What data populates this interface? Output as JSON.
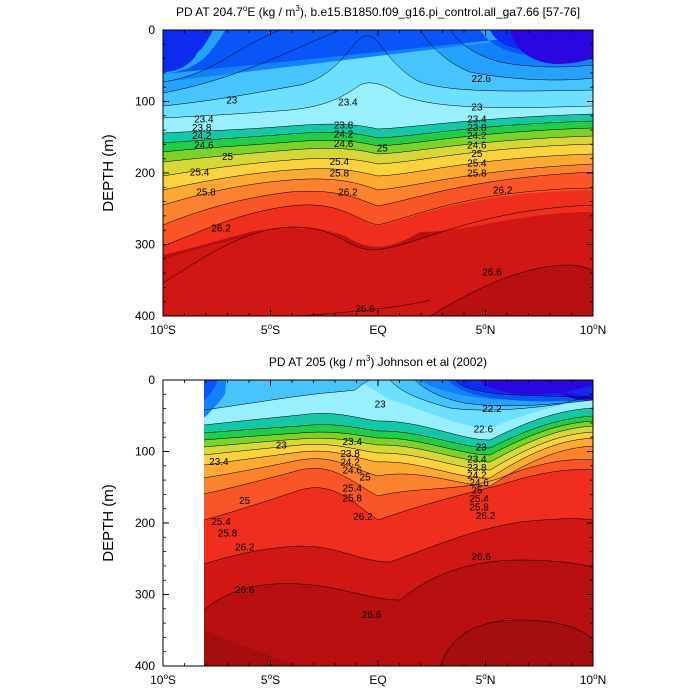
{
  "colors": {
    "levels": [
      "#2a07e0",
      "#0d2cf0",
      "#0a55f7",
      "#1281fb",
      "#24a2fd",
      "#47c3fe",
      "#6de0ff",
      "#98f0ff",
      "#13c8a5",
      "#20cd47",
      "#7ad326",
      "#d6d935",
      "#fbd33c",
      "#fcaa31",
      "#fc822d",
      "#fa5526",
      "#ef2e1d",
      "#d11714",
      "#b80f10"
    ],
    "threshold": [
      22.4,
      22.6,
      22.8,
      23.0,
      23.2,
      23.4,
      23.6,
      23.8,
      24.0,
      24.2,
      24.4,
      24.6,
      24.8,
      25.0,
      25.2,
      25.6,
      26.0,
      26.4,
      26.8
    ]
  },
  "chart_data": [
    {
      "type": "contour",
      "title_main": "PD AT 204.7",
      "title_sup": "o",
      "title_mid": "E (kg / m",
      "title_sup2": "3",
      "title_end": "), b.e15.B1850.f09_g16.pi_control.all_ga7.66 [57-76]",
      "ylabel": "DEPTH (m)",
      "x_ticks": [
        {
          "value": -10,
          "label": "10",
          "sup": "o",
          "suffix": "S"
        },
        {
          "value": -5,
          "label": "5",
          "sup": "o",
          "suffix": "S"
        },
        {
          "value": 0,
          "label": "EQ",
          "sup": "",
          "suffix": ""
        },
        {
          "value": 5,
          "label": "5",
          "sup": "o",
          "suffix": "N"
        },
        {
          "value": 10,
          "label": "10",
          "sup": "o",
          "suffix": "N"
        }
      ],
      "y_ticks": [
        0,
        100,
        200,
        300,
        400
      ],
      "xlim": [
        -10,
        10
      ],
      "ylim": [
        0,
        400
      ],
      "contour_labels": [
        {
          "text": "23",
          "x": -6.8,
          "y": 97
        },
        {
          "text": "23.4",
          "x": -8.1,
          "y": 124
        },
        {
          "text": "23.8",
          "x": -8.2,
          "y": 136
        },
        {
          "text": "24.2",
          "x": -8.2,
          "y": 147
        },
        {
          "text": "24.6",
          "x": -8.1,
          "y": 160
        },
        {
          "text": "25",
          "x": -7.0,
          "y": 176
        },
        {
          "text": "25.4",
          "x": -8.3,
          "y": 198
        },
        {
          "text": "25.8",
          "x": -8.0,
          "y": 226
        },
        {
          "text": "26.2",
          "x": -7.3,
          "y": 276
        },
        {
          "text": "23.4",
          "x": -1.4,
          "y": 100
        },
        {
          "text": "23.8",
          "x": -1.6,
          "y": 132
        },
        {
          "text": "24.2",
          "x": -1.6,
          "y": 145
        },
        {
          "text": "24.6",
          "x": -1.6,
          "y": 158
        },
        {
          "text": "25",
          "x": 0.2,
          "y": 164
        },
        {
          "text": "25.4",
          "x": -1.8,
          "y": 183
        },
        {
          "text": "25.8",
          "x": -1.8,
          "y": 199
        },
        {
          "text": "26.2",
          "x": -1.4,
          "y": 226
        },
        {
          "text": "22.6",
          "x": 4.8,
          "y": 67
        },
        {
          "text": "23",
          "x": 4.6,
          "y": 107
        },
        {
          "text": "23.4",
          "x": 4.6,
          "y": 124
        },
        {
          "text": "23.8",
          "x": 4.6,
          "y": 136
        },
        {
          "text": "24.2",
          "x": 4.6,
          "y": 147
        },
        {
          "text": "24.6",
          "x": 4.6,
          "y": 160
        },
        {
          "text": "25",
          "x": 4.6,
          "y": 172
        },
        {
          "text": "25.4",
          "x": 4.6,
          "y": 185
        },
        {
          "text": "25.8",
          "x": 4.6,
          "y": 199
        },
        {
          "text": "26.2",
          "x": 5.8,
          "y": 223
        },
        {
          "text": "26.6",
          "x": 5.3,
          "y": 338
        },
        {
          "text": "26.6",
          "x": -0.6,
          "y": 389
        }
      ]
    },
    {
      "type": "contour",
      "title_main": "PD AT 205 (kg / m",
      "title_sup": "3",
      "title_end": ") Johnson et al (2002)",
      "ylabel": "DEPTH (m)",
      "x_ticks": [
        {
          "value": -10,
          "label": "10",
          "sup": "o",
          "suffix": "S"
        },
        {
          "value": -5,
          "label": "5",
          "sup": "o",
          "suffix": "S"
        },
        {
          "value": 0,
          "label": "EQ",
          "sup": "",
          "suffix": ""
        },
        {
          "value": 5,
          "label": "5",
          "sup": "o",
          "suffix": "N"
        },
        {
          "value": 10,
          "label": "10",
          "sup": "o",
          "suffix": "N"
        }
      ],
      "y_ticks": [
        0,
        100,
        200,
        300,
        400
      ],
      "xlim": [
        -10,
        10
      ],
      "ylim": [
        0,
        400
      ],
      "data_xmin": -8.1,
      "contour_labels": [
        {
          "text": "23",
          "x": -4.5,
          "y": 90
        },
        {
          "text": "23.4",
          "x": -7.4,
          "y": 113
        },
        {
          "text": "25",
          "x": -6.2,
          "y": 168
        },
        {
          "text": "25.4",
          "x": -7.3,
          "y": 197
        },
        {
          "text": "25.8",
          "x": -7.0,
          "y": 213
        },
        {
          "text": "26.2",
          "x": -6.2,
          "y": 233
        },
        {
          "text": "26.6",
          "x": -6.2,
          "y": 292
        },
        {
          "text": "23",
          "x": 0.1,
          "y": 33
        },
        {
          "text": "23.4",
          "x": -1.2,
          "y": 85
        },
        {
          "text": "23.8",
          "x": -1.3,
          "y": 102
        },
        {
          "text": "24.2",
          "x": -1.3,
          "y": 114
        },
        {
          "text": "24.6",
          "x": -1.2,
          "y": 125
        },
        {
          "text": "25",
          "x": -0.6,
          "y": 135
        },
        {
          "text": "25.4",
          "x": -1.2,
          "y": 150
        },
        {
          "text": "25.8",
          "x": -1.2,
          "y": 164
        },
        {
          "text": "26.2",
          "x": -0.7,
          "y": 190
        },
        {
          "text": "26.6",
          "x": -0.3,
          "y": 327
        },
        {
          "text": "22.2",
          "x": 5.3,
          "y": 39
        },
        {
          "text": "22.6",
          "x": 4.9,
          "y": 68
        },
        {
          "text": "23",
          "x": 4.8,
          "y": 93
        },
        {
          "text": "23.4",
          "x": 4.6,
          "y": 110
        },
        {
          "text": "23.8",
          "x": 4.6,
          "y": 122
        },
        {
          "text": "24.2",
          "x": 4.6,
          "y": 132
        },
        {
          "text": "24.6",
          "x": 4.7,
          "y": 143
        },
        {
          "text": "25",
          "x": 4.6,
          "y": 153
        },
        {
          "text": "25.4",
          "x": 4.7,
          "y": 165
        },
        {
          "text": "25.8",
          "x": 4.7,
          "y": 177
        },
        {
          "text": "26.2",
          "x": 5.0,
          "y": 189
        },
        {
          "text": "26.6",
          "x": 4.8,
          "y": 246
        }
      ]
    }
  ]
}
